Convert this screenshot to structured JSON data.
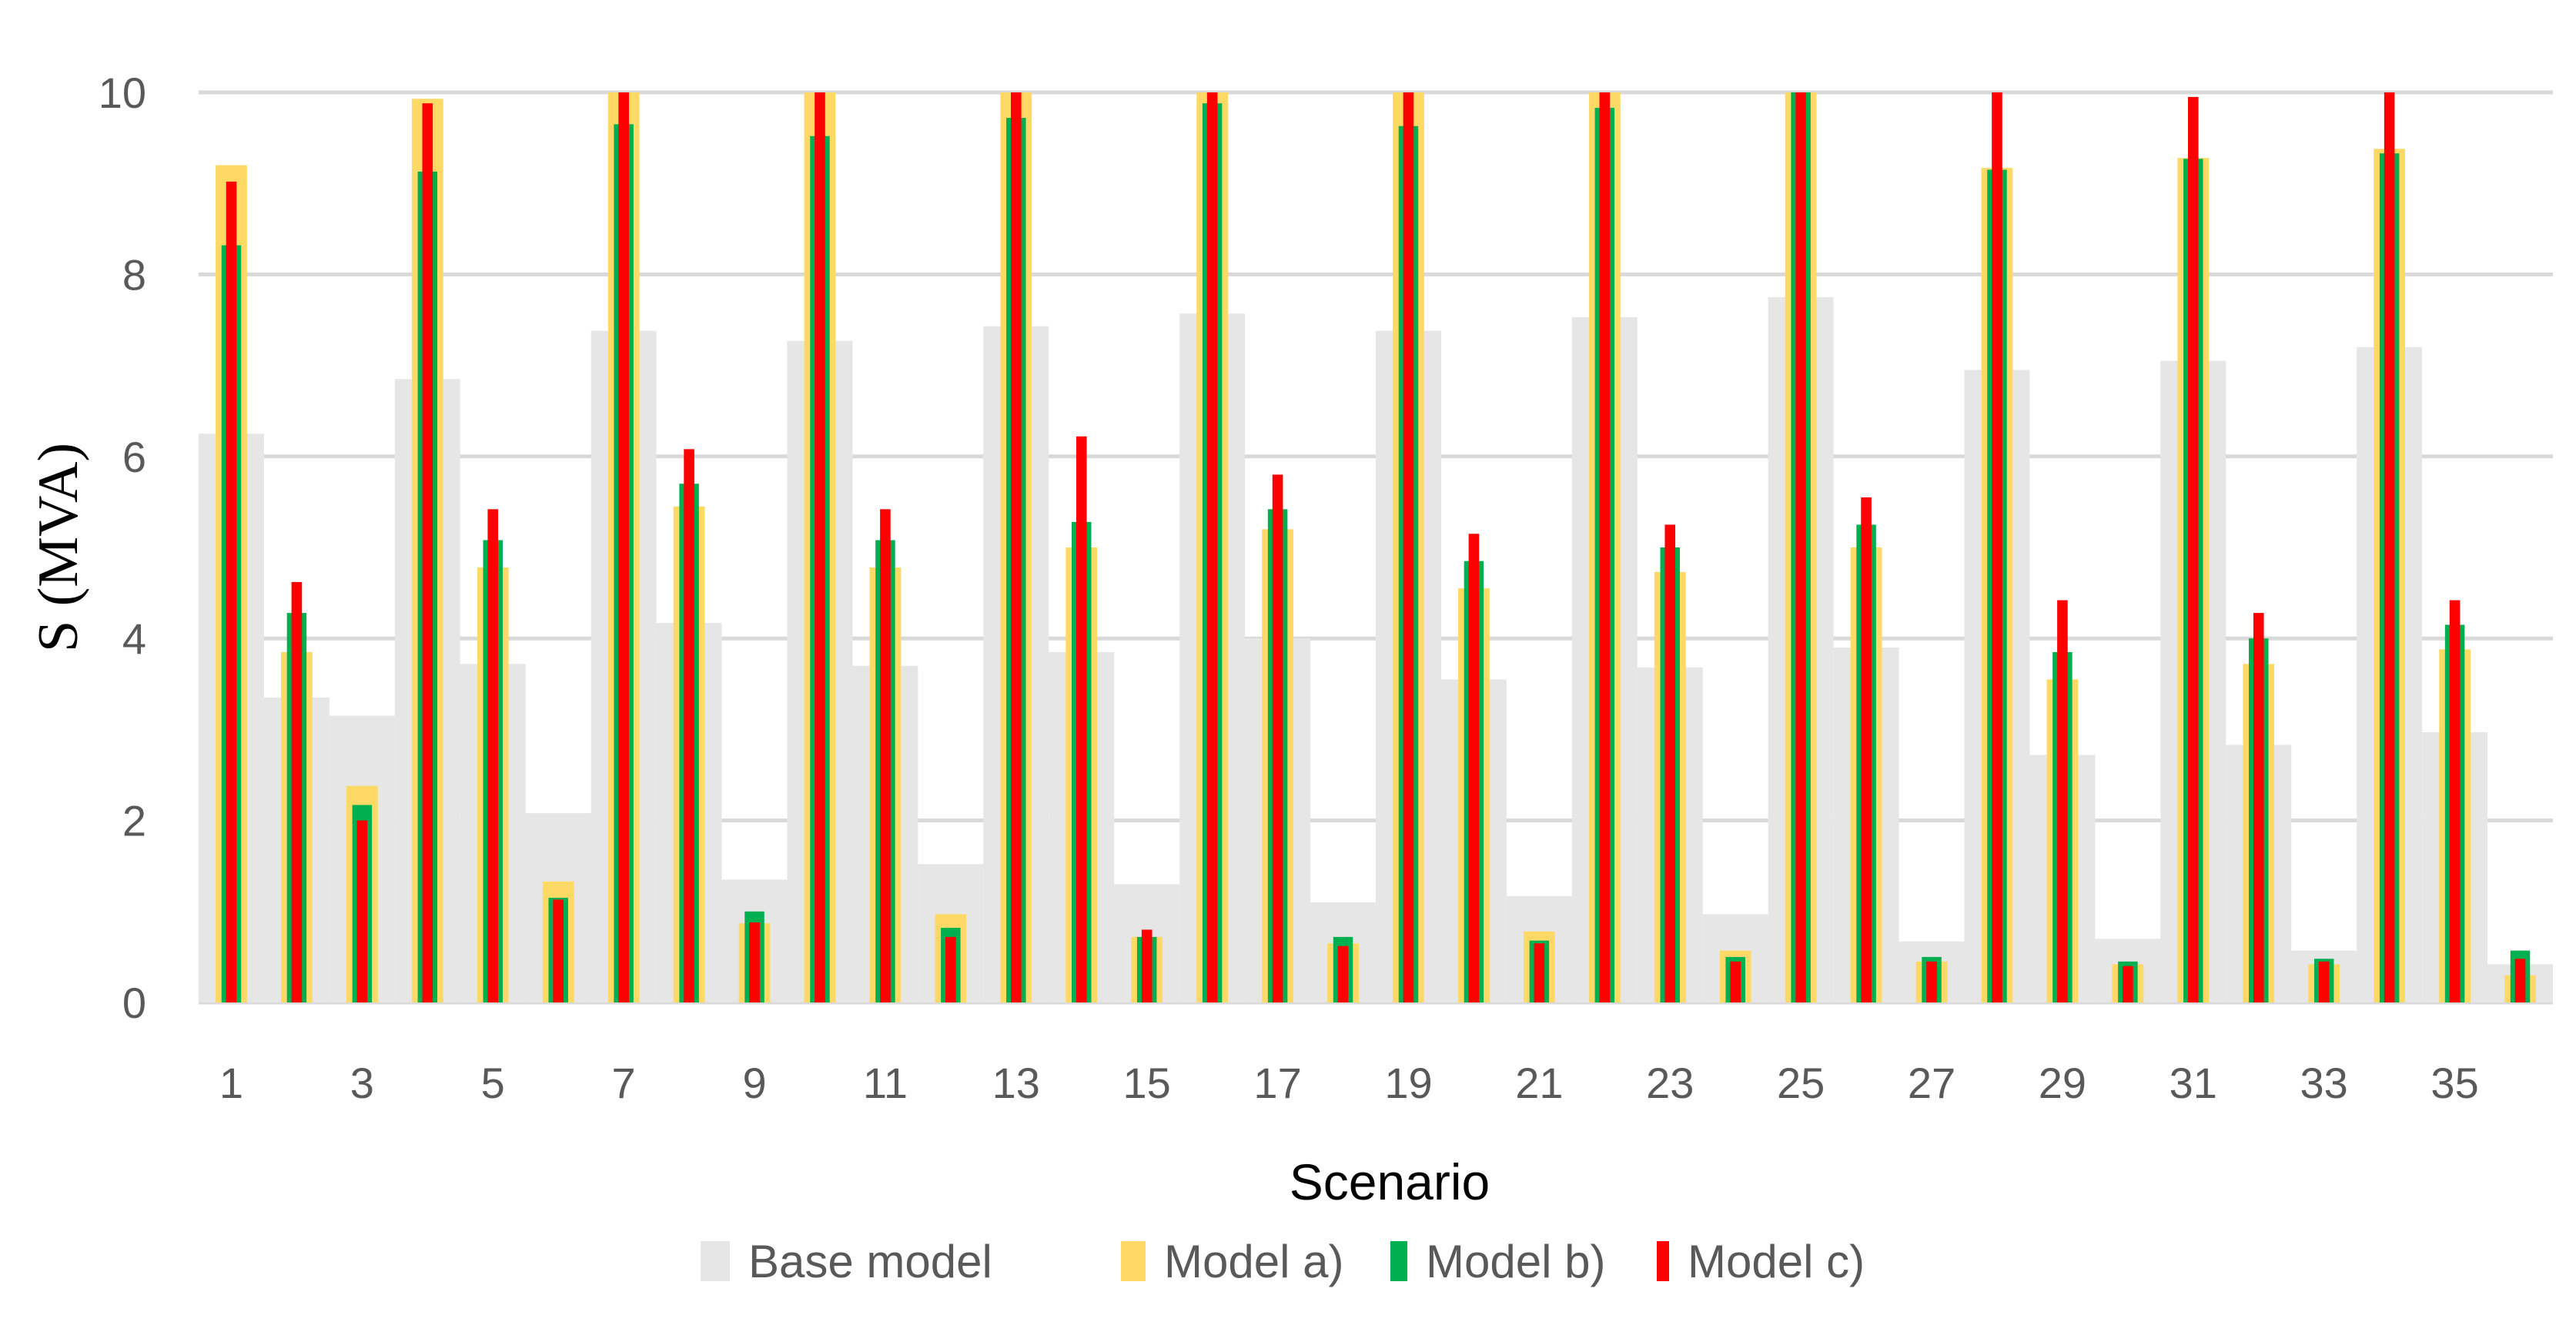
{
  "chart_data": {
    "type": "bar",
    "xlabel": "Scenario",
    "ylabel": "S (MVA)",
    "ylim": [
      0,
      10
    ],
    "yticks": [
      0,
      2,
      4,
      6,
      8,
      10
    ],
    "grid": true,
    "legend_position": "bottom",
    "categories": [
      "1",
      "2",
      "3",
      "4",
      "5",
      "6",
      "7",
      "8",
      "9",
      "10",
      "11",
      "12",
      "13",
      "14",
      "15",
      "16",
      "17",
      "18",
      "19",
      "20",
      "21",
      "22",
      "23",
      "24",
      "25",
      "26",
      "27",
      "28",
      "29",
      "30",
      "31",
      "32",
      "33",
      "34",
      "35",
      "36"
    ],
    "x_tick_labels": [
      "1",
      "3",
      "5",
      "7",
      "9",
      "11",
      "13",
      "15",
      "17",
      "19",
      "21",
      "23",
      "25",
      "27",
      "29",
      "31",
      "33",
      "35"
    ],
    "series": [
      {
        "name": "Base model",
        "color": "#e6e6e6",
        "values": [
          6.25,
          3.35,
          3.15,
          6.85,
          3.72,
          2.08,
          7.38,
          4.17,
          1.35,
          7.27,
          3.7,
          1.52,
          7.43,
          3.85,
          1.3,
          7.57,
          4.0,
          1.1,
          7.38,
          3.55,
          1.17,
          7.53,
          3.68,
          0.97,
          7.75,
          3.9,
          0.67,
          6.95,
          2.72,
          0.7,
          7.05,
          2.83,
          0.57,
          7.2,
          2.97,
          0.42
        ]
      },
      {
        "name": "Model a)",
        "color": "#ffd966",
        "values": [
          9.2,
          3.85,
          2.38,
          9.93,
          4.78,
          1.33,
          10.0,
          5.45,
          0.87,
          10.0,
          4.78,
          0.97,
          10.0,
          5.0,
          0.72,
          10.0,
          5.2,
          0.65,
          10.0,
          4.55,
          0.78,
          10.0,
          4.73,
          0.57,
          10.0,
          5.0,
          0.45,
          9.17,
          3.55,
          0.42,
          9.28,
          3.72,
          0.42,
          9.38,
          3.88,
          0.3
        ]
      },
      {
        "name": "Model b)",
        "color": "#00b050",
        "values": [
          8.32,
          4.28,
          2.17,
          9.13,
          5.08,
          1.15,
          9.65,
          5.7,
          1.0,
          9.52,
          5.08,
          0.82,
          9.72,
          5.28,
          0.72,
          9.88,
          5.42,
          0.72,
          9.63,
          4.85,
          0.68,
          9.83,
          5.0,
          0.5,
          10.0,
          5.25,
          0.5,
          9.15,
          3.85,
          0.45,
          9.27,
          4.0,
          0.48,
          9.33,
          4.15,
          0.57
        ]
      },
      {
        "name": "Model c)",
        "color": "#ff0000",
        "values": [
          9.02,
          4.62,
          2.0,
          9.88,
          5.42,
          1.13,
          10.0,
          6.08,
          0.88,
          10.0,
          5.42,
          0.72,
          10.0,
          6.22,
          0.8,
          10.0,
          5.8,
          0.62,
          10.0,
          5.15,
          0.65,
          10.0,
          5.25,
          0.45,
          10.0,
          5.55,
          0.45,
          10.0,
          4.42,
          0.4,
          9.95,
          4.28,
          0.45,
          10.0,
          4.42,
          0.48
        ]
      }
    ]
  }
}
